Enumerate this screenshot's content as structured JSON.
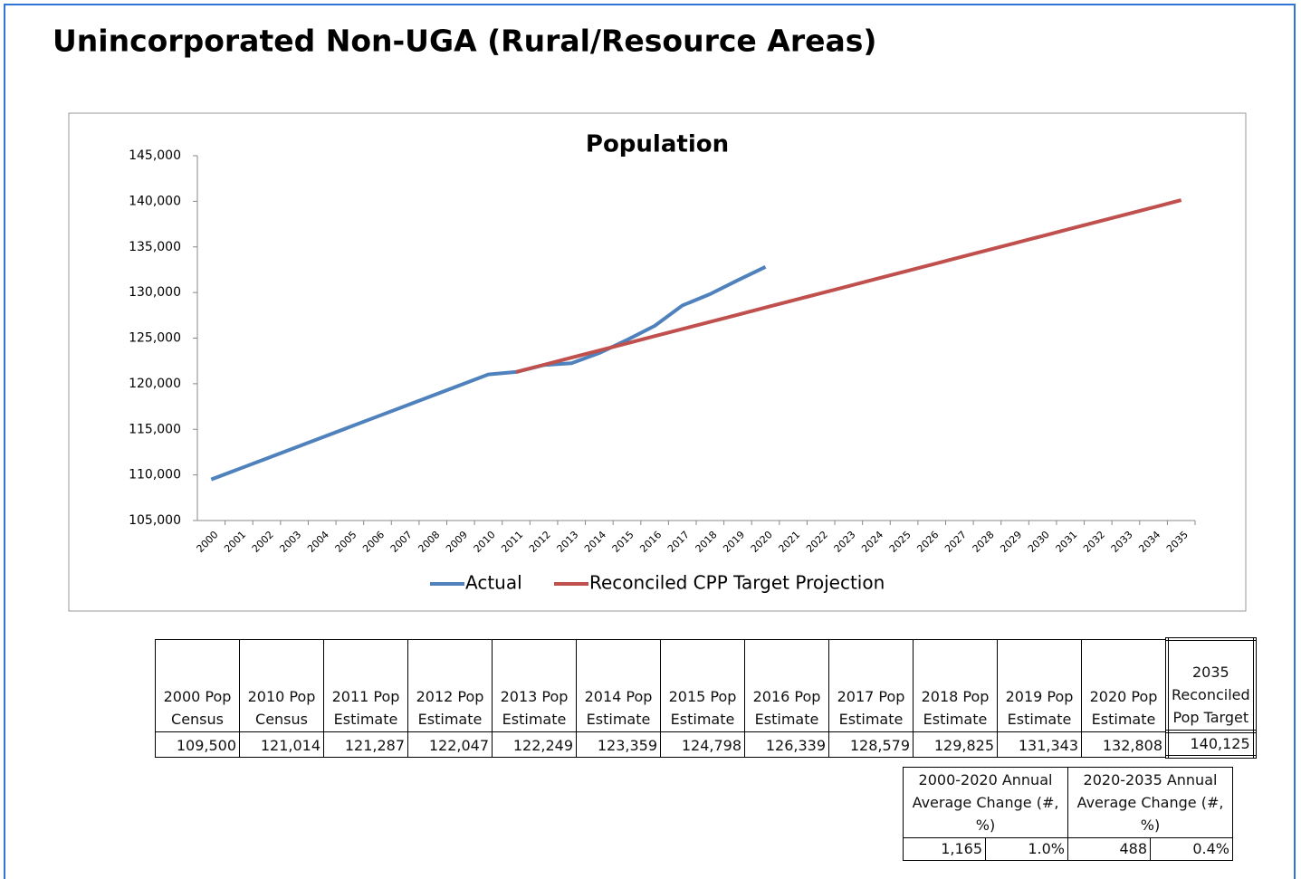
{
  "title": "Unincorporated Non-UGA (Rural/Resource Areas)",
  "chart_data": {
    "type": "line",
    "title": "Population",
    "categories": [
      "2000",
      "2001",
      "2002",
      "2003",
      "2004",
      "2005",
      "2006",
      "2007",
      "2008",
      "2009",
      "2010",
      "2011",
      "2012",
      "2013",
      "2014",
      "2015",
      "2016",
      "2017",
      "2018",
      "2019",
      "2020",
      "2021",
      "2022",
      "2023",
      "2024",
      "2025",
      "2026",
      "2027",
      "2028",
      "2029",
      "2030",
      "2031",
      "2032",
      "2033",
      "2034",
      "2035"
    ],
    "series": [
      {
        "name": "Actual",
        "color": "#4f81bd",
        "values": [
          109500,
          110651,
          111803,
          112954,
          114106,
          115257,
          116408,
          117560,
          118711,
          119863,
          121014,
          121287,
          122047,
          122249,
          123359,
          124798,
          126339,
          128579,
          129825,
          131343,
          132808,
          null,
          null,
          null,
          null,
          null,
          null,
          null,
          null,
          null,
          null,
          null,
          null,
          null,
          null,
          null
        ]
      },
      {
        "name": "Reconciled CPP Target Projection",
        "color": "#c0504d",
        "values": [
          null,
          null,
          null,
          null,
          null,
          null,
          null,
          null,
          null,
          null,
          null,
          121287,
          122072,
          122857,
          123642,
          124427,
          125212,
          125997,
          126782,
          127567,
          128352,
          129137,
          129922,
          130707,
          131492,
          132277,
          133062,
          133847,
          134632,
          135417,
          136202,
          136987,
          137772,
          138557,
          139342,
          140125
        ]
      }
    ],
    "ylim": [
      105000,
      145000
    ],
    "yticks": [
      {
        "value": 105000,
        "label": "105,000"
      },
      {
        "value": 110000,
        "label": "110,000"
      },
      {
        "value": 115000,
        "label": "115,000"
      },
      {
        "value": 120000,
        "label": "120,000"
      },
      {
        "value": 125000,
        "label": "125,000"
      },
      {
        "value": 130000,
        "label": "130,000"
      },
      {
        "value": 135000,
        "label": "135,000"
      },
      {
        "value": 140000,
        "label": "140,000"
      },
      {
        "value": 145000,
        "label": "145,000"
      }
    ],
    "legend": "bottom"
  },
  "table": {
    "headers": [
      "2000 Pop Census",
      "2010 Pop Census",
      "2011 Pop Estimate",
      "2012 Pop Estimate",
      "2013 Pop Estimate",
      "2014 Pop Estimate",
      "2015 Pop Estimate",
      "2016 Pop Estimate",
      "2017 Pop Estimate",
      "2018 Pop Estimate",
      "2019 Pop Estimate",
      "2020 Pop Estimate",
      "2035 Reconciled Pop Target"
    ],
    "rows": [
      [
        "109,500",
        "121,014",
        "121,287",
        "122,047",
        "122,249",
        "123,359",
        "124,798",
        "126,339",
        "128,579",
        "129,825",
        "131,343",
        "132,808",
        "140,125"
      ]
    ]
  },
  "summary_table": {
    "headers": [
      "2000-2020 Annual Average Change (#, %)",
      "2020-2035 Annual Average Change (#, %)"
    ],
    "rows": [
      [
        "1,165",
        "1.0%",
        "488",
        "0.4%"
      ]
    ]
  }
}
